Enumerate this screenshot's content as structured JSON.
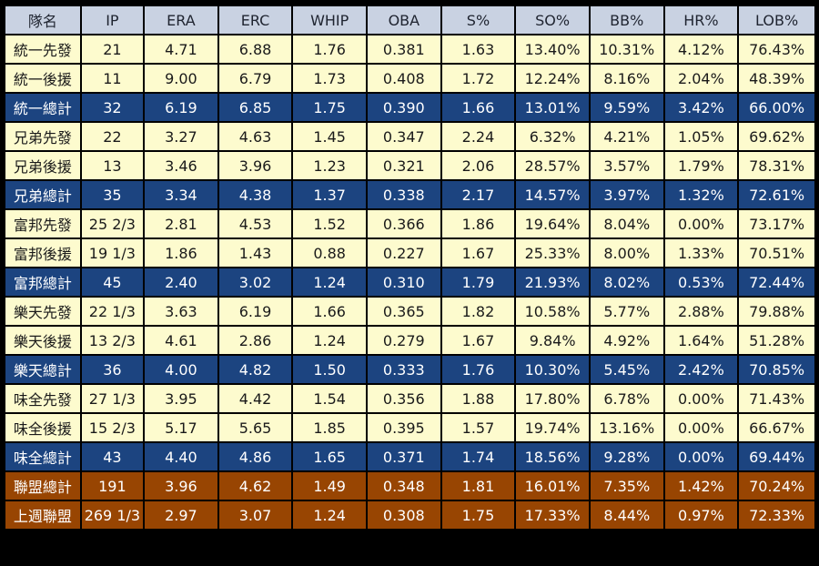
{
  "table": {
    "columns": [
      "隊名",
      "IP",
      "ERA",
      "ERC",
      "WHIP",
      "OBA",
      "S%",
      "SO%",
      "BB%",
      "HR%",
      "LOB%"
    ],
    "rows": [
      {
        "type": "sub",
        "cells": [
          "統一先發",
          "21",
          "4.71",
          "6.88",
          "1.76",
          "0.381",
          "1.63",
          "13.40%",
          "10.31%",
          "4.12%",
          "76.43%"
        ]
      },
      {
        "type": "sub",
        "cells": [
          "統一後援",
          "11",
          "9.00",
          "6.79",
          "1.73",
          "0.408",
          "1.72",
          "12.24%",
          "8.16%",
          "2.04%",
          "48.39%"
        ]
      },
      {
        "type": "total",
        "cells": [
          "統一總計",
          "32",
          "6.19",
          "6.85",
          "1.75",
          "0.390",
          "1.66",
          "13.01%",
          "9.59%",
          "3.42%",
          "66.00%"
        ]
      },
      {
        "type": "sub",
        "cells": [
          "兄弟先發",
          "22",
          "3.27",
          "4.63",
          "1.45",
          "0.347",
          "2.24",
          "6.32%",
          "4.21%",
          "1.05%",
          "69.62%"
        ]
      },
      {
        "type": "sub",
        "cells": [
          "兄弟後援",
          "13",
          "3.46",
          "3.96",
          "1.23",
          "0.321",
          "2.06",
          "28.57%",
          "3.57%",
          "1.79%",
          "78.31%"
        ]
      },
      {
        "type": "total",
        "cells": [
          "兄弟總計",
          "35",
          "3.34",
          "4.38",
          "1.37",
          "0.338",
          "2.17",
          "14.57%",
          "3.97%",
          "1.32%",
          "72.61%"
        ]
      },
      {
        "type": "sub",
        "cells": [
          "富邦先發",
          "25 2/3",
          "2.81",
          "4.53",
          "1.52",
          "0.366",
          "1.86",
          "19.64%",
          "8.04%",
          "0.00%",
          "73.17%"
        ]
      },
      {
        "type": "sub",
        "cells": [
          "富邦後援",
          "19 1/3",
          "1.86",
          "1.43",
          "0.88",
          "0.227",
          "1.67",
          "25.33%",
          "8.00%",
          "1.33%",
          "70.51%"
        ]
      },
      {
        "type": "total",
        "cells": [
          "富邦總計",
          "45",
          "2.40",
          "3.02",
          "1.24",
          "0.310",
          "1.79",
          "21.93%",
          "8.02%",
          "0.53%",
          "72.44%"
        ]
      },
      {
        "type": "sub",
        "cells": [
          "樂天先發",
          "22 1/3",
          "3.63",
          "6.19",
          "1.66",
          "0.365",
          "1.82",
          "10.58%",
          "5.77%",
          "2.88%",
          "79.88%"
        ]
      },
      {
        "type": "sub",
        "cells": [
          "樂天後援",
          "13 2/3",
          "4.61",
          "2.86",
          "1.24",
          "0.279",
          "1.67",
          "9.84%",
          "4.92%",
          "1.64%",
          "51.28%"
        ]
      },
      {
        "type": "total",
        "cells": [
          "樂天總計",
          "36",
          "4.00",
          "4.82",
          "1.50",
          "0.333",
          "1.76",
          "10.30%",
          "5.45%",
          "2.42%",
          "70.85%"
        ]
      },
      {
        "type": "sub",
        "cells": [
          "味全先發",
          "27 1/3",
          "3.95",
          "4.42",
          "1.54",
          "0.356",
          "1.88",
          "17.80%",
          "6.78%",
          "0.00%",
          "71.43%"
        ]
      },
      {
        "type": "sub",
        "cells": [
          "味全後援",
          "15 2/3",
          "5.17",
          "5.65",
          "1.85",
          "0.395",
          "1.57",
          "19.74%",
          "13.16%",
          "0.00%",
          "66.67%"
        ]
      },
      {
        "type": "total",
        "cells": [
          "味全總計",
          "43",
          "4.40",
          "4.86",
          "1.65",
          "0.371",
          "1.74",
          "18.56%",
          "9.28%",
          "0.00%",
          "69.44%"
        ]
      },
      {
        "type": "league",
        "cells": [
          "聯盟總計",
          "191",
          "3.96",
          "4.62",
          "1.49",
          "0.348",
          "1.81",
          "16.01%",
          "7.35%",
          "1.42%",
          "70.24%"
        ]
      },
      {
        "type": "league",
        "cells": [
          "上週聯盟",
          "269 1/3",
          "2.97",
          "3.07",
          "1.24",
          "0.308",
          "1.75",
          "17.33%",
          "8.44%",
          "0.97%",
          "72.33%"
        ]
      }
    ]
  },
  "colors": {
    "header_bg": "#c9d2e2",
    "sub_bg": "#fdfbce",
    "total_bg": "#1c4480",
    "league_bg": "#984502",
    "grid": "#000000"
  }
}
